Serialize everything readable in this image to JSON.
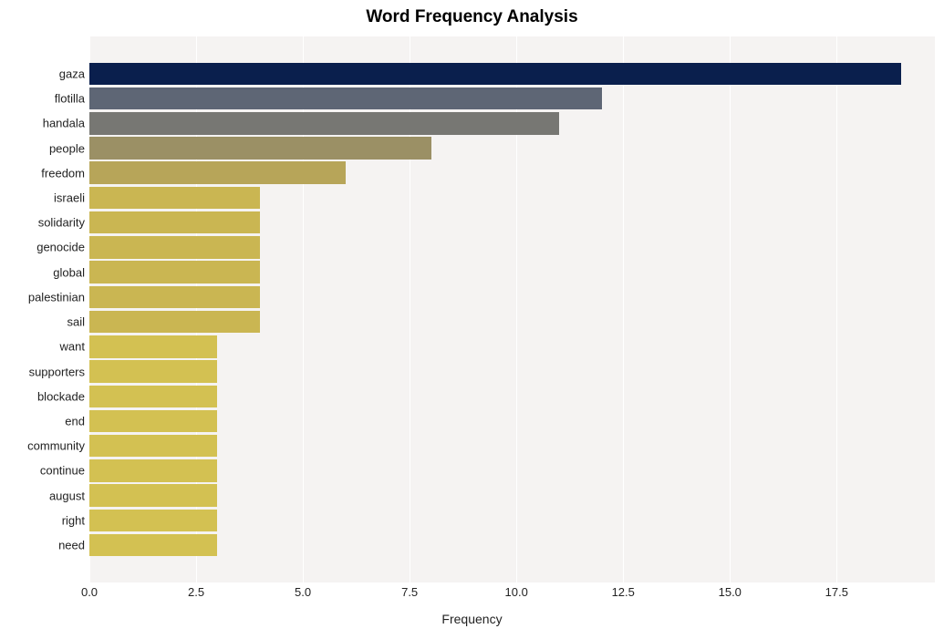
{
  "chart": {
    "type": "bar-horizontal",
    "title": "Word Frequency Analysis",
    "title_fontsize": 19,
    "title_fontweight": "bold",
    "xlabel": "Frequency",
    "xlabel_fontsize": 14,
    "ylabel_fontsize": 13,
    "xtick_fontsize": 13,
    "background_color": "#ffffff",
    "plot_bg_color": "#f5f3f2",
    "grid_color": "#ffffff",
    "xlim": [
      0,
      19.8
    ],
    "xticks": [
      0.0,
      2.5,
      5.0,
      7.5,
      10.0,
      12.5,
      15.0,
      17.5
    ],
    "xtick_labels": [
      "0.0",
      "2.5",
      "5.0",
      "7.5",
      "10.0",
      "12.5",
      "15.0",
      "17.5"
    ],
    "bar_height_ratio": 0.72,
    "bars": [
      {
        "label": "gaza",
        "value": 19,
        "color": "#0a1f4d"
      },
      {
        "label": "flotilla",
        "value": 12,
        "color": "#5e6675"
      },
      {
        "label": "handala",
        "value": 11,
        "color": "#777773"
      },
      {
        "label": "people",
        "value": 8,
        "color": "#9b9065"
      },
      {
        "label": "freedom",
        "value": 6,
        "color": "#b7a559"
      },
      {
        "label": "israeli",
        "value": 4,
        "color": "#cab652"
      },
      {
        "label": "solidarity",
        "value": 4,
        "color": "#cab652"
      },
      {
        "label": "genocide",
        "value": 4,
        "color": "#cab652"
      },
      {
        "label": "global",
        "value": 4,
        "color": "#cab652"
      },
      {
        "label": "palestinian",
        "value": 4,
        "color": "#cab652"
      },
      {
        "label": "sail",
        "value": 4,
        "color": "#cab652"
      },
      {
        "label": "want",
        "value": 3,
        "color": "#d3c152"
      },
      {
        "label": "supporters",
        "value": 3,
        "color": "#d3c152"
      },
      {
        "label": "blockade",
        "value": 3,
        "color": "#d3c152"
      },
      {
        "label": "end",
        "value": 3,
        "color": "#d3c152"
      },
      {
        "label": "community",
        "value": 3,
        "color": "#d3c152"
      },
      {
        "label": "continue",
        "value": 3,
        "color": "#d3c152"
      },
      {
        "label": "august",
        "value": 3,
        "color": "#d3c152"
      },
      {
        "label": "right",
        "value": 3,
        "color": "#d3c152"
      },
      {
        "label": "need",
        "value": 3,
        "color": "#d3c152"
      }
    ]
  }
}
